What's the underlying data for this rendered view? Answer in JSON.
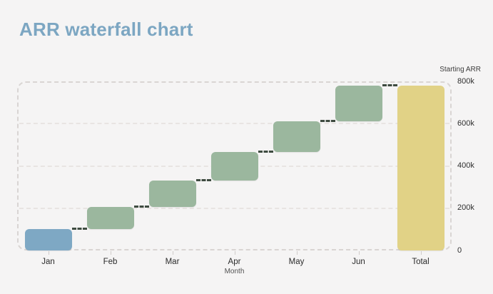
{
  "header": {
    "title": "ARR waterfall chart",
    "title_color": "#7ca6c2"
  },
  "page": {
    "background_color": "#f5f4f4"
  },
  "chart_data": {
    "type": "bar",
    "subtype": "waterfall",
    "categories": [
      "Jan",
      "Feb",
      "Mar",
      "Apr",
      "May",
      "Jun",
      "Total"
    ],
    "increments": [
      100000,
      105000,
      125000,
      135000,
      145000,
      170000
    ],
    "cumulative": [
      100000,
      205000,
      330000,
      465000,
      610000,
      780000
    ],
    "total": 780000,
    "xlabel": "Month",
    "ylabel": "Starting ARR",
    "ylim": [
      0,
      800000
    ],
    "ytick_values": [
      0,
      200000,
      400000,
      600000,
      800000
    ],
    "ytick_labels": [
      "0",
      "200k",
      "400k",
      "600k",
      "800k"
    ],
    "yaxis_side": "right",
    "grid": "dashed horizontal",
    "bar_colors": {
      "start": "#7ea8c4",
      "increment": "#9bb79e",
      "total": "#e1d286"
    },
    "connector_color": "#3e4b40",
    "gridline_color": "#e8e4e2",
    "plot_border_color": "#d9d5d3"
  }
}
